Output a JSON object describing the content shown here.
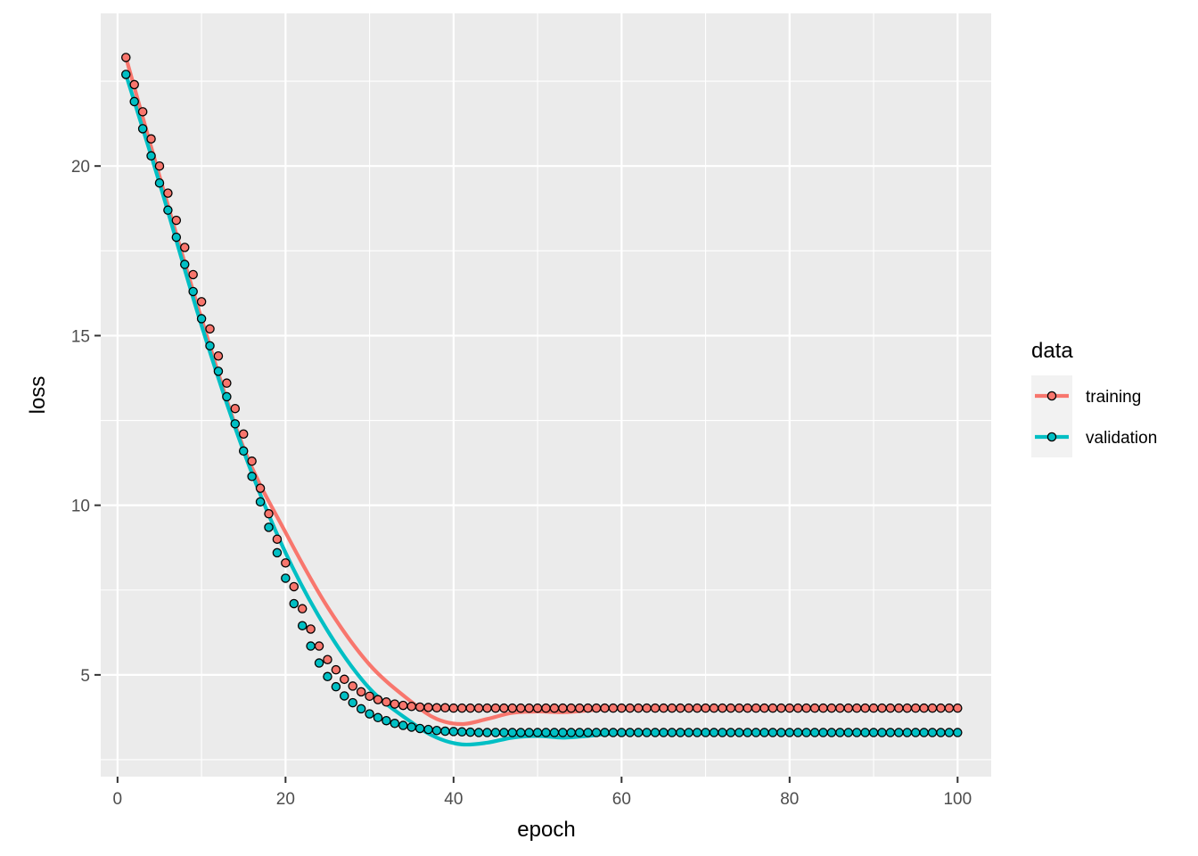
{
  "chart_data": {
    "type": "line",
    "xlabel": "epoch",
    "ylabel": "loss",
    "xlim": [
      -2,
      104
    ],
    "ylim": [
      2,
      24.5
    ],
    "x_ticks": [
      0,
      20,
      40,
      60,
      80,
      100
    ],
    "y_ticks": [
      5,
      10,
      15,
      20
    ],
    "grid": true,
    "legend": {
      "title": "data",
      "position": "right",
      "entries": [
        "training",
        "validation"
      ]
    },
    "x": {
      "start": 1,
      "end": 100
    },
    "series": [
      {
        "name": "training",
        "color": "#F8766D",
        "points": [
          [
            1,
            23.2
          ],
          [
            2,
            22.4
          ],
          [
            3,
            21.6
          ],
          [
            4,
            20.8
          ],
          [
            5,
            20.0
          ],
          [
            6,
            19.2
          ],
          [
            7,
            18.4
          ],
          [
            8,
            17.6
          ],
          [
            9,
            16.8
          ],
          [
            10,
            16.0
          ],
          [
            11,
            15.2
          ],
          [
            12,
            14.4
          ],
          [
            13,
            13.6
          ],
          [
            14,
            12.85
          ],
          [
            15,
            12.1
          ],
          [
            16,
            11.3
          ],
          [
            17,
            10.5
          ],
          [
            18,
            9.75
          ],
          [
            19,
            9.0
          ],
          [
            20,
            8.3
          ],
          [
            21,
            7.6
          ],
          [
            22,
            6.95
          ],
          [
            23,
            6.35
          ],
          [
            24,
            5.85
          ],
          [
            25,
            5.45
          ],
          [
            26,
            5.15
          ],
          [
            27,
            4.87
          ],
          [
            28,
            4.67
          ],
          [
            29,
            4.5
          ],
          [
            30,
            4.37
          ],
          [
            31,
            4.27
          ],
          [
            32,
            4.2
          ],
          [
            33,
            4.14
          ],
          [
            34,
            4.1
          ],
          [
            35,
            4.07
          ],
          [
            36,
            4.05
          ],
          [
            37,
            4.04
          ],
          [
            38,
            4.03
          ],
          [
            39,
            4.03
          ],
          [
            40,
            4.02
          ],
          [
            41,
            4.02
          ],
          [
            42,
            4.02
          ],
          [
            43,
            4.02
          ],
          [
            44,
            4.02
          ],
          [
            45,
            4.02
          ],
          [
            46,
            4.02
          ],
          [
            47,
            4.02
          ],
          [
            48,
            4.02
          ],
          [
            49,
            4.02
          ],
          [
            50,
            4.02
          ],
          [
            51,
            4.02
          ],
          [
            52,
            4.02
          ],
          [
            53,
            4.02
          ],
          [
            54,
            4.02
          ],
          [
            55,
            4.02
          ],
          [
            56,
            4.02
          ],
          [
            57,
            4.02
          ],
          [
            58,
            4.02
          ],
          [
            59,
            4.02
          ],
          [
            60,
            4.02
          ],
          [
            61,
            4.02
          ],
          [
            62,
            4.02
          ],
          [
            63,
            4.02
          ],
          [
            64,
            4.02
          ],
          [
            65,
            4.02
          ],
          [
            66,
            4.02
          ],
          [
            67,
            4.02
          ],
          [
            68,
            4.02
          ],
          [
            69,
            4.02
          ],
          [
            70,
            4.02
          ],
          [
            71,
            4.02
          ],
          [
            72,
            4.02
          ],
          [
            73,
            4.02
          ],
          [
            74,
            4.02
          ],
          [
            75,
            4.02
          ],
          [
            76,
            4.02
          ],
          [
            77,
            4.02
          ],
          [
            78,
            4.02
          ],
          [
            79,
            4.02
          ],
          [
            80,
            4.02
          ],
          [
            81,
            4.02
          ],
          [
            82,
            4.02
          ],
          [
            83,
            4.02
          ],
          [
            84,
            4.02
          ],
          [
            85,
            4.02
          ],
          [
            86,
            4.02
          ],
          [
            87,
            4.02
          ],
          [
            88,
            4.02
          ],
          [
            89,
            4.02
          ],
          [
            90,
            4.02
          ],
          [
            91,
            4.02
          ],
          [
            92,
            4.02
          ],
          [
            93,
            4.02
          ],
          [
            94,
            4.02
          ],
          [
            95,
            4.02
          ],
          [
            96,
            4.02
          ],
          [
            97,
            4.02
          ],
          [
            98,
            4.02
          ],
          [
            99,
            4.02
          ],
          [
            100,
            4.02
          ]
        ],
        "smooth": [
          [
            1,
            23.2
          ],
          [
            5,
            19.7
          ],
          [
            10,
            15.5
          ],
          [
            15,
            11.7
          ],
          [
            20,
            9.2
          ],
          [
            25,
            7.0
          ],
          [
            30,
            5.3
          ],
          [
            35,
            4.2
          ],
          [
            38,
            3.7
          ],
          [
            41,
            3.55
          ],
          [
            44,
            3.7
          ],
          [
            47,
            3.88
          ],
          [
            50,
            3.92
          ],
          [
            53,
            3.9
          ],
          [
            56,
            3.95
          ],
          [
            60,
            4.02
          ],
          [
            70,
            4.02
          ],
          [
            80,
            4.02
          ],
          [
            90,
            4.02
          ],
          [
            100,
            4.02
          ]
        ]
      },
      {
        "name": "validation",
        "color": "#00BFC4",
        "points": [
          [
            1,
            22.7
          ],
          [
            2,
            21.9
          ],
          [
            3,
            21.1
          ],
          [
            4,
            20.3
          ],
          [
            5,
            19.5
          ],
          [
            6,
            18.7
          ],
          [
            7,
            17.9
          ],
          [
            8,
            17.1
          ],
          [
            9,
            16.3
          ],
          [
            10,
            15.5
          ],
          [
            11,
            14.7
          ],
          [
            12,
            13.95
          ],
          [
            13,
            13.2
          ],
          [
            14,
            12.4
          ],
          [
            15,
            11.6
          ],
          [
            16,
            10.85
          ],
          [
            17,
            10.1
          ],
          [
            18,
            9.35
          ],
          [
            19,
            8.6
          ],
          [
            20,
            7.85
          ],
          [
            21,
            7.1
          ],
          [
            22,
            6.45
          ],
          [
            23,
            5.85
          ],
          [
            24,
            5.35
          ],
          [
            25,
            4.95
          ],
          [
            26,
            4.65
          ],
          [
            27,
            4.38
          ],
          [
            28,
            4.18
          ],
          [
            29,
            4.0
          ],
          [
            30,
            3.85
          ],
          [
            31,
            3.74
          ],
          [
            32,
            3.65
          ],
          [
            33,
            3.57
          ],
          [
            34,
            3.51
          ],
          [
            35,
            3.46
          ],
          [
            36,
            3.42
          ],
          [
            37,
            3.39
          ],
          [
            38,
            3.36
          ],
          [
            39,
            3.34
          ],
          [
            40,
            3.33
          ],
          [
            41,
            3.32
          ],
          [
            42,
            3.31
          ],
          [
            43,
            3.3
          ],
          [
            44,
            3.3
          ],
          [
            45,
            3.3
          ],
          [
            46,
            3.3
          ],
          [
            47,
            3.3
          ],
          [
            48,
            3.3
          ],
          [
            49,
            3.3
          ],
          [
            50,
            3.3
          ],
          [
            51,
            3.3
          ],
          [
            52,
            3.3
          ],
          [
            53,
            3.3
          ],
          [
            54,
            3.3
          ],
          [
            55,
            3.3
          ],
          [
            56,
            3.3
          ],
          [
            57,
            3.3
          ],
          [
            58,
            3.3
          ],
          [
            59,
            3.3
          ],
          [
            60,
            3.3
          ],
          [
            61,
            3.3
          ],
          [
            62,
            3.3
          ],
          [
            63,
            3.3
          ],
          [
            64,
            3.3
          ],
          [
            65,
            3.3
          ],
          [
            66,
            3.3
          ],
          [
            67,
            3.3
          ],
          [
            68,
            3.3
          ],
          [
            69,
            3.3
          ],
          [
            70,
            3.3
          ],
          [
            71,
            3.3
          ],
          [
            72,
            3.3
          ],
          [
            73,
            3.3
          ],
          [
            74,
            3.3
          ],
          [
            75,
            3.3
          ],
          [
            76,
            3.3
          ],
          [
            77,
            3.3
          ],
          [
            78,
            3.3
          ],
          [
            79,
            3.3
          ],
          [
            80,
            3.3
          ],
          [
            81,
            3.3
          ],
          [
            82,
            3.3
          ],
          [
            83,
            3.3
          ],
          [
            84,
            3.3
          ],
          [
            85,
            3.3
          ],
          [
            86,
            3.3
          ],
          [
            87,
            3.3
          ],
          [
            88,
            3.3
          ],
          [
            89,
            3.3
          ],
          [
            90,
            3.3
          ],
          [
            91,
            3.3
          ],
          [
            92,
            3.3
          ],
          [
            93,
            3.3
          ],
          [
            94,
            3.3
          ],
          [
            95,
            3.3
          ],
          [
            96,
            3.3
          ],
          [
            97,
            3.3
          ],
          [
            98,
            3.3
          ],
          [
            99,
            3.3
          ],
          [
            100,
            3.3
          ]
        ],
        "smooth": [
          [
            1,
            22.7
          ],
          [
            5,
            19.5
          ],
          [
            10,
            15.3
          ],
          [
            15,
            11.6
          ],
          [
            20,
            8.6
          ],
          [
            25,
            6.3
          ],
          [
            30,
            4.6
          ],
          [
            35,
            3.6
          ],
          [
            38,
            3.15
          ],
          [
            41,
            2.95
          ],
          [
            44,
            3.0
          ],
          [
            47,
            3.15
          ],
          [
            50,
            3.2
          ],
          [
            53,
            3.15
          ],
          [
            56,
            3.2
          ],
          [
            60,
            3.28
          ],
          [
            70,
            3.3
          ],
          [
            80,
            3.3
          ],
          [
            90,
            3.3
          ],
          [
            100,
            3.3
          ]
        ]
      }
    ]
  }
}
